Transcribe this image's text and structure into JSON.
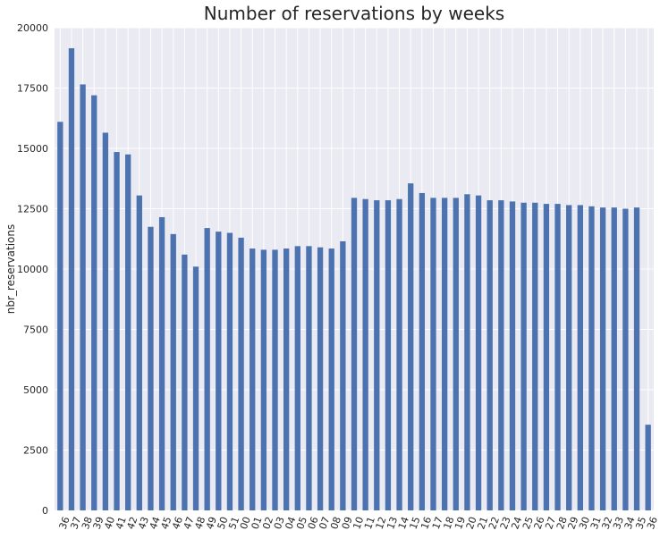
{
  "chart_data": {
    "type": "bar",
    "title": "Number of reservations by weeks",
    "xlabel": "",
    "ylabel": "nbr_reservations",
    "ylim": [
      0,
      20000
    ],
    "yticks": [
      0,
      2500,
      5000,
      7500,
      10000,
      12500,
      15000,
      17500,
      20000
    ],
    "grid": true,
    "bar_color": "#4c72b0",
    "background_color": "#eaeaf2",
    "categories": [
      "36",
      "37",
      "38",
      "39",
      "40",
      "41",
      "42",
      "43",
      "44",
      "45",
      "46",
      "47",
      "48",
      "49",
      "50",
      "51",
      "00",
      "01",
      "02",
      "03",
      "04",
      "05",
      "06",
      "07",
      "08",
      "09",
      "10",
      "11",
      "12",
      "13",
      "14",
      "15",
      "16",
      "17",
      "18",
      "19",
      "20",
      "21",
      "22",
      "23",
      "24",
      "25",
      "26",
      "27",
      "28",
      "29",
      "30",
      "31",
      "32",
      "33",
      "34",
      "35",
      "36"
    ],
    "values": [
      16100,
      19150,
      17650,
      17200,
      15650,
      14850,
      14750,
      13050,
      11750,
      12150,
      11450,
      10600,
      10100,
      11700,
      11550,
      11500,
      11300,
      10850,
      10800,
      10800,
      10850,
      10950,
      10950,
      10900,
      10850,
      11150,
      12950,
      12900,
      12850,
      12850,
      12900,
      13550,
      13150,
      12950,
      12950,
      12950,
      13100,
      13050,
      12850,
      12850,
      12800,
      12750,
      12750,
      12700,
      12700,
      12650,
      12650,
      12600,
      12550,
      12550,
      12500,
      12550,
      3550
    ]
  }
}
